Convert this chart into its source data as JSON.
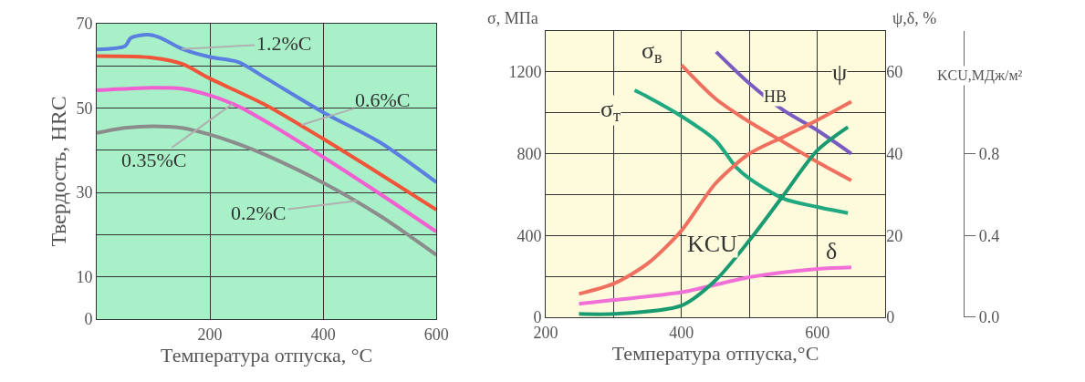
{
  "chart_data": [
    {
      "type": "line",
      "xlabel": "Температура отпуска, °C",
      "ylabel": "Твердость, HRC",
      "series": [
        {
          "color": "#5a7fe0",
          "x": [
            0,
            50,
            60,
            90,
            110,
            150,
            200,
            250,
            300,
            400,
            500,
            600
          ],
          "values": [
            63.9,
            64.7,
            66.6,
            67.4,
            66.8,
            64.1,
            62.1,
            60.9,
            57,
            49,
            41.9,
            32.4
          ]
        },
        {
          "color": "#f0553a",
          "x": [
            0,
            100,
            150,
            200,
            300,
            400,
            500,
            600
          ],
          "values": [
            62.3,
            61.9,
            60.5,
            57,
            50.6,
            42.7,
            34.4,
            25.9
          ]
        },
        {
          "color": "#f060d0",
          "x": [
            0,
            100,
            150,
            200,
            250,
            300,
            400,
            500,
            600
          ],
          "values": [
            54.2,
            54.8,
            54.6,
            53,
            50.4,
            46.7,
            38.4,
            29.7,
            20.7
          ]
        },
        {
          "color": "#8c8c8c",
          "x": [
            0,
            50,
            100,
            150,
            200,
            250,
            300,
            400,
            500,
            600
          ],
          "values": [
            44.1,
            45.3,
            45.7,
            45.3,
            43.7,
            41.5,
            38.8,
            32.3,
            24.5,
            15.2
          ]
        }
      ],
      "annotations": [
        {
          "text": "1.2%C",
          "x": 150,
          "y": 64
        },
        {
          "text": "0.6%C",
          "x": 362,
          "y": 46
        },
        {
          "text": "0.35%C",
          "x": 240,
          "y": 51
        },
        {
          "text": "0.2%C",
          "x": 460,
          "y": 28
        }
      ],
      "xlim": [
        0,
        600
      ],
      "xticks": [
        200,
        400,
        600
      ],
      "ylim": [
        0,
        70
      ],
      "yticks": [
        0,
        10,
        {
          "value": 20,
          "label": null
        },
        30,
        {
          "value": 40,
          "label": null
        },
        50,
        {
          "value": 60,
          "label": null
        },
        70
      ],
      "grid": true,
      "legend": false,
      "marker": "none",
      "line_style": "solid"
    },
    {
      "type": "line",
      "xlabel": "Температура отпуска,°C",
      "ylabel": "σ, МПа",
      "y2label": "ψ,δ, %",
      "y3label": "KCU,МДж/м²",
      "series": [
        {
          "name": "σ$_{в}$",
          "color": "#f07060",
          "axis": "y",
          "x": [
            400,
            450,
            500,
            550,
            600,
            650
          ],
          "values": [
            1233,
            1069,
            955,
            857,
            759,
            669
          ]
        },
        {
          "name": "σ$_{т}$",
          "color": "#20a880",
          "axis": "y",
          "x": [
            331,
            350,
            400,
            450,
            480,
            500,
            550,
            600,
            645
          ],
          "values": [
            1110,
            1078,
            983,
            865,
            735,
            678,
            580,
            539,
            509
          ]
        },
        {
          "name": "HB",
          "color": "#7a5cc0",
          "axis": "y",
          "x": [
            451,
            500,
            550,
            600,
            650
          ],
          "values": [
            1298,
            1143,
            1012,
            914,
            800
          ]
        },
        {
          "name": "ψ",
          "color": "#f07060",
          "axis": "y2",
          "x": [
            249,
            300,
            350,
            400,
            450,
            500,
            550,
            600,
            650
          ],
          "values": [
            5.7,
            8.2,
            13.1,
            21.2,
            32.7,
            40,
            44.1,
            48.2,
            52.7
          ]
        },
        {
          "name": "δ",
          "color": "#f070d8",
          "axis": "y2",
          "x": [
            249,
            300,
            400,
            500,
            600,
            650
          ],
          "values": [
            3.3,
            4.2,
            6.1,
            9.8,
            11.8,
            12.2
          ]
        },
        {
          "name": "KCU",
          "color": "#1a9a70",
          "axis": "y3",
          "x": [
            249,
            300,
            400,
            450,
            500,
            550,
            600,
            645
          ],
          "values": [
            0.016,
            0.016,
            0.057,
            0.18,
            0.376,
            0.596,
            0.816,
            0.93
          ]
        }
      ],
      "xlim": [
        200,
        700
      ],
      "xticks": [
        200,
        {
          "value": 300,
          "label": null
        },
        400,
        {
          "value": 500,
          "label": null
        },
        600
      ],
      "ylim": [
        0,
        1400
      ],
      "yticks": [
        0,
        {
          "value": 200,
          "label": null
        },
        400,
        {
          "value": 600,
          "label": null
        },
        800,
        {
          "value": 1000,
          "label": null
        },
        1200
      ],
      "y2lim": [
        0,
        70
      ],
      "y2ticks": [
        0,
        20,
        40,
        60
      ],
      "y3lim": [
        0,
        1.4
      ],
      "y3ticks": [
        {
          "value": 0,
          "label": "0.0"
        },
        0.4,
        0.8
      ],
      "grid": true,
      "legend": false,
      "marker": "none",
      "line_style": "solid"
    }
  ]
}
